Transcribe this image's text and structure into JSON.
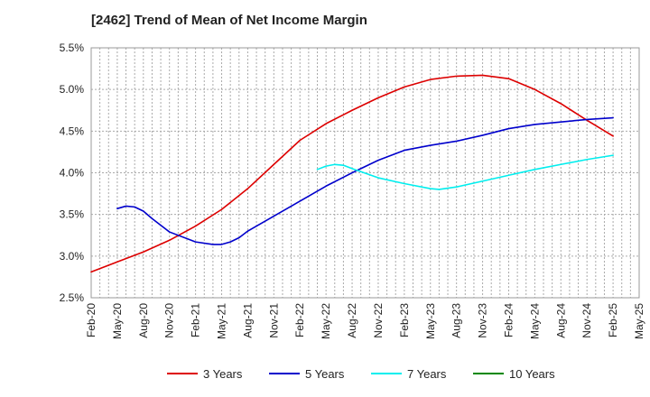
{
  "chart_data": {
    "type": "line",
    "title": "[2462]  Trend of Mean of Net Income Margin",
    "xlabel": "",
    "ylabel": "",
    "x_ticks": [
      "Feb-20",
      "May-20",
      "Aug-20",
      "Nov-20",
      "Feb-21",
      "May-21",
      "Aug-21",
      "Nov-21",
      "Feb-22",
      "May-22",
      "Aug-22",
      "Nov-22",
      "Feb-23",
      "May-23",
      "Aug-23",
      "Nov-23",
      "Feb-24",
      "May-24",
      "Aug-24",
      "Nov-24",
      "Feb-25",
      "May-25"
    ],
    "y_ticks": [
      "2.5%",
      "3.0%",
      "3.5%",
      "4.0%",
      "4.5%",
      "5.0%",
      "5.5%"
    ],
    "ylim": [
      2.5,
      5.5
    ],
    "xlim": [
      "Feb-20",
      "May-25"
    ],
    "grid": true,
    "legend_position": "bottom",
    "series": [
      {
        "name": "3 Years",
        "color": "#dd0000",
        "points": [
          [
            "Feb-20",
            2.81
          ],
          [
            "May-20",
            2.93
          ],
          [
            "Aug-20",
            3.05
          ],
          [
            "Nov-20",
            3.19
          ],
          [
            "Feb-21",
            3.36
          ],
          [
            "May-21",
            3.56
          ],
          [
            "Aug-21",
            3.81
          ],
          [
            "Nov-21",
            4.1
          ],
          [
            "Feb-22",
            4.39
          ],
          [
            "May-22",
            4.59
          ],
          [
            "Aug-22",
            4.75
          ],
          [
            "Nov-22",
            4.9
          ],
          [
            "Feb-23",
            5.03
          ],
          [
            "May-23",
            5.12
          ],
          [
            "Aug-23",
            5.16
          ],
          [
            "Nov-23",
            5.17
          ],
          [
            "Feb-24",
            5.13
          ],
          [
            "May-24",
            5.0
          ],
          [
            "Aug-24",
            4.83
          ],
          [
            "Nov-24",
            4.63
          ],
          [
            "Feb-25",
            4.44
          ]
        ]
      },
      {
        "name": "5 Years",
        "color": "#0000cc",
        "points": [
          [
            "May-20",
            3.57
          ],
          [
            "Jun-20",
            3.6
          ],
          [
            "Jul-20",
            3.59
          ],
          [
            "Aug-20",
            3.54
          ],
          [
            "Sep-20",
            3.45
          ],
          [
            "Nov-20",
            3.29
          ],
          [
            "Feb-21",
            3.17
          ],
          [
            "Apr-21",
            3.14
          ],
          [
            "May-21",
            3.14
          ],
          [
            "Jun-21",
            3.17
          ],
          [
            "Jul-21",
            3.22
          ],
          [
            "Aug-21",
            3.3
          ],
          [
            "Nov-21",
            3.48
          ],
          [
            "Feb-22",
            3.66
          ],
          [
            "May-22",
            3.84
          ],
          [
            "Aug-22",
            4.0
          ],
          [
            "Nov-22",
            4.15
          ],
          [
            "Feb-23",
            4.27
          ],
          [
            "May-23",
            4.33
          ],
          [
            "Aug-23",
            4.38
          ],
          [
            "Nov-23",
            4.45
          ],
          [
            "Feb-24",
            4.53
          ],
          [
            "May-24",
            4.58
          ],
          [
            "Aug-24",
            4.61
          ],
          [
            "Nov-24",
            4.64
          ],
          [
            "Feb-25",
            4.66
          ]
        ]
      },
      {
        "name": "7 Years",
        "color": "#00eeee",
        "points": [
          [
            "Apr-22",
            4.04
          ],
          [
            "May-22",
            4.08
          ],
          [
            "Jun-22",
            4.1
          ],
          [
            "Jul-22",
            4.09
          ],
          [
            "Aug-22",
            4.05
          ],
          [
            "Nov-22",
            3.94
          ],
          [
            "Feb-23",
            3.87
          ],
          [
            "May-23",
            3.81
          ],
          [
            "Jun-23",
            3.8
          ],
          [
            "Aug-23",
            3.83
          ],
          [
            "Nov-23",
            3.9
          ],
          [
            "Feb-24",
            3.97
          ],
          [
            "May-24",
            4.04
          ],
          [
            "Aug-24",
            4.1
          ],
          [
            "Nov-24",
            4.16
          ],
          [
            "Feb-25",
            4.21
          ]
        ]
      },
      {
        "name": "10 Years",
        "color": "#008800",
        "points": []
      }
    ]
  }
}
